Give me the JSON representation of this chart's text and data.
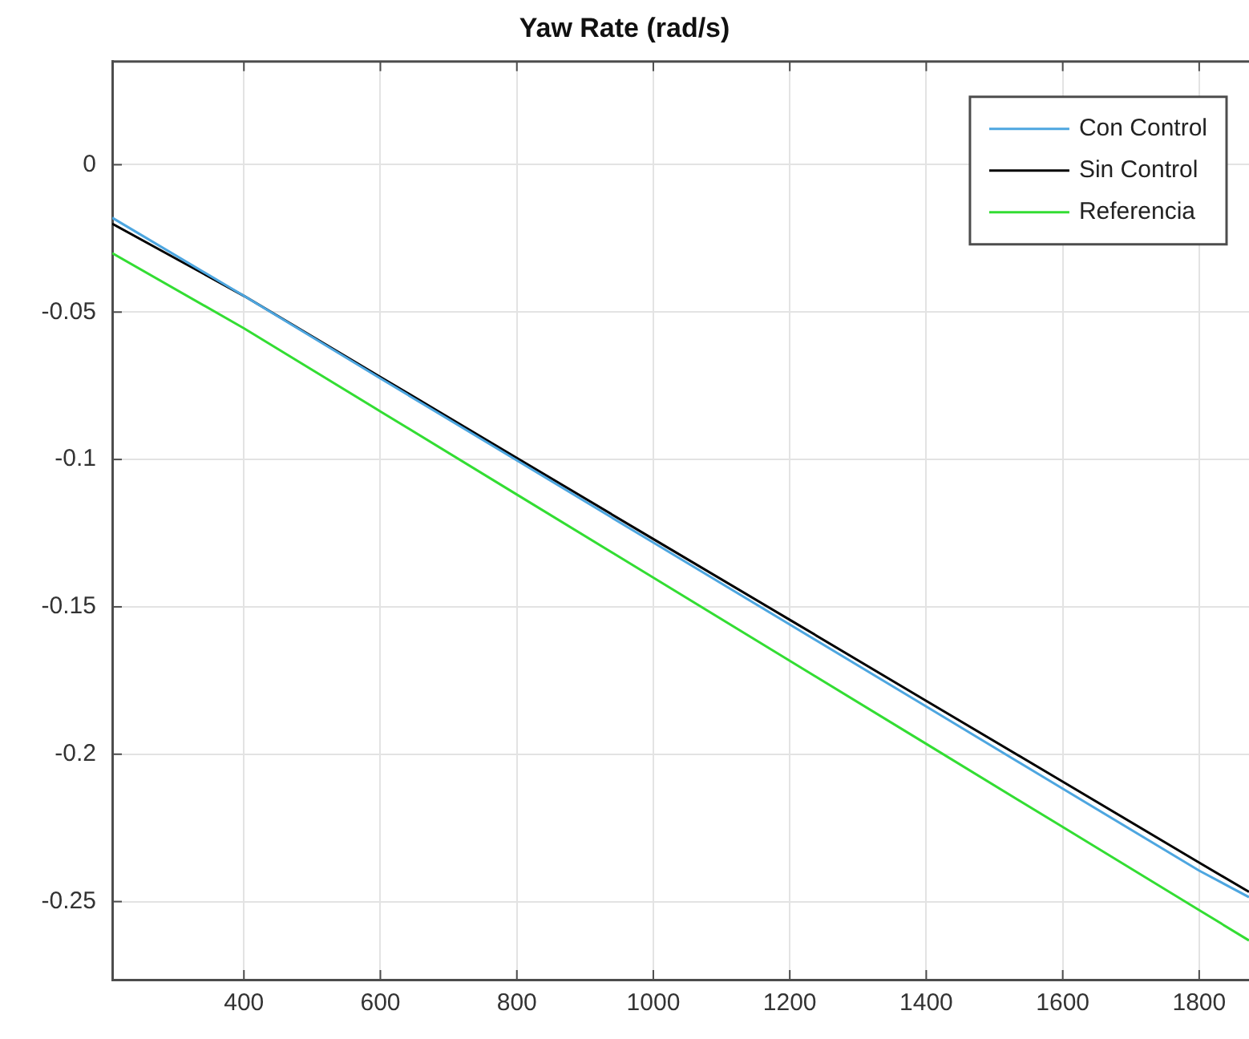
{
  "chart_data": {
    "type": "line",
    "title": "Yaw Rate (rad/s)",
    "x": [
      207,
      400,
      600,
      800,
      1000,
      1200,
      1400,
      1600,
      1800,
      1873
    ],
    "series": [
      {
        "name": "Con Control",
        "color": "#4da6e0",
        "values": [
          -0.018,
          -0.0445,
          -0.0725,
          -0.1003,
          -0.1282,
          -0.156,
          -0.1838,
          -0.2117,
          -0.2395,
          -0.2485
        ]
      },
      {
        "name": "Sin Control",
        "color": "#000000",
        "values": [
          -0.02,
          -0.0445,
          -0.072,
          -0.0995,
          -0.127,
          -0.1544,
          -0.1819,
          -0.2093,
          -0.2368,
          -0.2467
        ]
      },
      {
        "name": "Referencia",
        "color": "#33dd33",
        "values": [
          -0.03,
          -0.0555,
          -0.0837,
          -0.1119,
          -0.1401,
          -0.1683,
          -0.1965,
          -0.2247,
          -0.2529,
          -0.2632
        ]
      }
    ],
    "xlim": [
      207,
      1873
    ],
    "xticks": [
      400,
      600,
      800,
      1000,
      1200,
      1400,
      1600,
      1800
    ],
    "ylim": [
      -0.2765,
      0.035
    ],
    "yticks": [
      -0.25,
      -0.2,
      -0.15,
      -0.1,
      -0.05,
      0
    ],
    "grid": true,
    "legend": "top right",
    "marker": "none",
    "line_style": "solid"
  }
}
